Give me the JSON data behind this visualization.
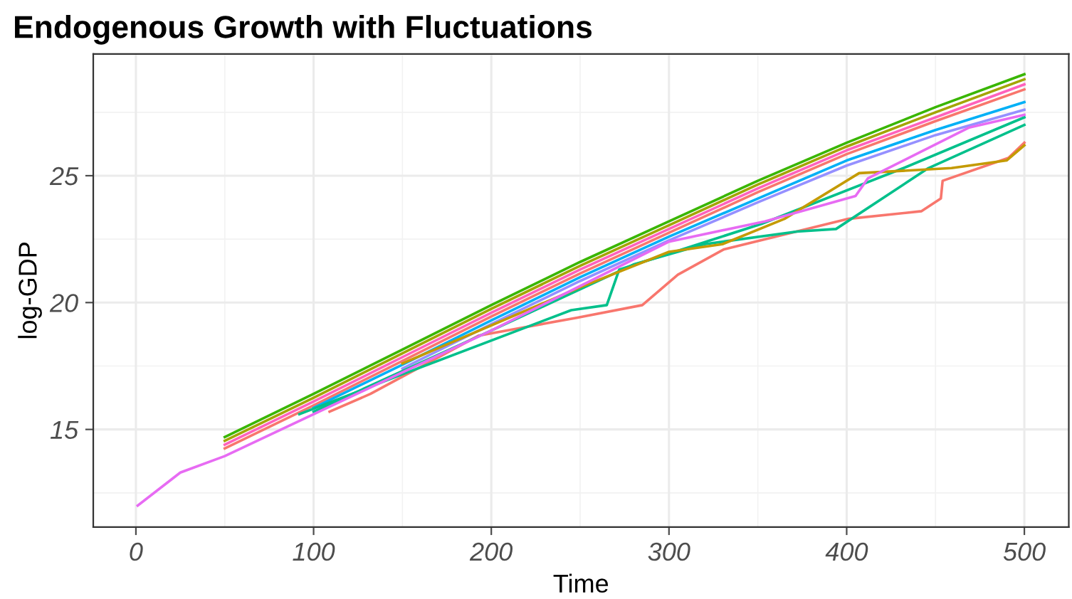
{
  "chart_data": {
    "type": "line",
    "title": "Endogenous Growth with Fluctuations",
    "xlabel": "Time",
    "ylabel": "log-GDP",
    "x": [
      50,
      100,
      150,
      200,
      250,
      300,
      350,
      400,
      450,
      500
    ],
    "xlim": [
      -24,
      525
    ],
    "ylim": [
      11.15,
      29.8
    ],
    "xticks": [
      0,
      100,
      200,
      300,
      400,
      500
    ],
    "yticks": [
      15,
      20,
      25
    ],
    "grid": true,
    "line_style": "solid",
    "marker": "none",
    "series": [
      {
        "color": "#39B600",
        "values": [
          14.7,
          16.4,
          18.15,
          19.9,
          21.6,
          23.2,
          24.8,
          26.3,
          27.7,
          29.0
        ]
      },
      {
        "color": "#A3A500",
        "values": [
          14.55,
          16.25,
          18.0,
          19.75,
          21.45,
          23.05,
          24.65,
          26.15,
          27.5,
          28.8
        ]
      },
      {
        "color": "#FF62BC",
        "values": [
          14.4,
          16.1,
          17.85,
          19.6,
          21.3,
          22.9,
          24.5,
          26.0,
          27.3,
          28.6
        ]
      },
      {
        "color": "#F8766D",
        "values": [
          14.25,
          15.95,
          17.7,
          19.45,
          21.15,
          22.75,
          24.35,
          25.85,
          27.15,
          28.4
        ]
      },
      {
        "color": "#00B0F6",
        "x": [
          100,
          150,
          200,
          250,
          300,
          350,
          400,
          450,
          500
        ],
        "values": [
          15.85,
          17.55,
          19.3,
          21.0,
          22.6,
          24.1,
          25.6,
          26.8,
          27.9
        ]
      },
      {
        "color": "#9590FF",
        "x": [
          150,
          200,
          250,
          300,
          350,
          400,
          450,
          500
        ],
        "values": [
          17.4,
          19.15,
          20.85,
          22.45,
          23.95,
          25.4,
          26.6,
          27.6
        ]
      },
      {
        "color": "#F8766D",
        "x": [
          109,
          132,
          193,
          248,
          285,
          305,
          331,
          401,
          442,
          453,
          454,
          491,
          500
        ],
        "values": [
          15.7,
          16.4,
          18.7,
          19.4,
          19.9,
          21.1,
          22.1,
          23.3,
          23.6,
          24.1,
          24.8,
          25.7,
          26.3
        ]
      },
      {
        "color": "#00C08B",
        "x": [
          92,
          151,
          245,
          265,
          272,
          352,
          432,
          500
        ],
        "values": [
          15.6,
          17.2,
          19.7,
          19.9,
          21.3,
          23.1,
          25.3,
          27.3
        ]
      },
      {
        "color": "#00C08B",
        "x": [
          100,
          200,
          280,
          320,
          372,
          394,
          446,
          500
        ],
        "values": [
          15.7,
          18.9,
          21.5,
          22.3,
          22.8,
          22.9,
          25.3,
          27.0
        ]
      },
      {
        "color": "#C49A00",
        "x": [
          150,
          250,
          300,
          330,
          365,
          407,
          459,
          490,
          500
        ],
        "values": [
          17.6,
          20.6,
          22.0,
          22.3,
          23.3,
          25.1,
          25.3,
          25.6,
          26.2
        ]
      },
      {
        "color": "#E76BF3",
        "x": [
          1,
          25,
          50,
          200,
          300,
          354,
          405,
          412,
          469,
          500
        ],
        "values": [
          12.0,
          13.3,
          13.95,
          18.9,
          22.4,
          23.2,
          24.2,
          24.9,
          26.9,
          27.4
        ]
      }
    ]
  }
}
